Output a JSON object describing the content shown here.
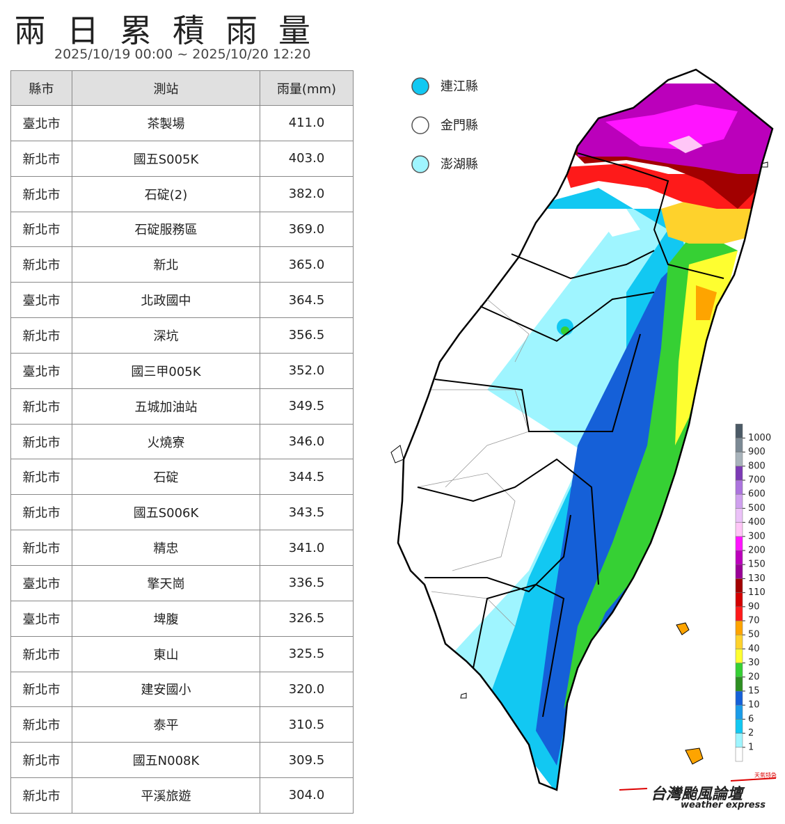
{
  "header": {
    "title": "兩日累積雨量",
    "subtitle": "2025/10/19 00:00 ~ 2025/10/20 12:20"
  },
  "table": {
    "columns": [
      "縣市",
      "測站",
      "雨量(mm)"
    ],
    "rows": [
      [
        "臺北市",
        "茶製場",
        "411.0"
      ],
      [
        "新北市",
        "國五S005K",
        "403.0"
      ],
      [
        "新北市",
        "石碇(2)",
        "382.0"
      ],
      [
        "新北市",
        "石碇服務區",
        "369.0"
      ],
      [
        "新北市",
        "新北",
        "365.0"
      ],
      [
        "臺北市",
        "北政國中",
        "364.5"
      ],
      [
        "新北市",
        "深坑",
        "356.5"
      ],
      [
        "臺北市",
        "國三甲005K",
        "352.0"
      ],
      [
        "新北市",
        "五城加油站",
        "349.5"
      ],
      [
        "新北市",
        "火燒寮",
        "346.0"
      ],
      [
        "新北市",
        "石碇",
        "344.5"
      ],
      [
        "新北市",
        "國五S006K",
        "343.5"
      ],
      [
        "新北市",
        "精忠",
        "341.0"
      ],
      [
        "臺北市",
        "擎天崗",
        "336.5"
      ],
      [
        "臺北市",
        "埤腹",
        "326.5"
      ],
      [
        "新北市",
        "東山",
        "325.5"
      ],
      [
        "新北市",
        "建安國小",
        "320.0"
      ],
      [
        "新北市",
        "泰平",
        "310.5"
      ],
      [
        "新北市",
        "國五N008K",
        "309.5"
      ],
      [
        "新北市",
        "平溪旅遊",
        "304.0"
      ]
    ]
  },
  "islands": [
    {
      "label": "連江縣",
      "color": "#12c8f2"
    },
    {
      "label": "金門縣",
      "color": "#ffffff"
    },
    {
      "label": "澎湖縣",
      "color": "#9ff5ff"
    }
  ],
  "colorbar": {
    "ticks": [
      1,
      2,
      6,
      10,
      15,
      20,
      30,
      40,
      50,
      70,
      90,
      110,
      130,
      150,
      200,
      300,
      400,
      500,
      600,
      700,
      800,
      900,
      1000
    ],
    "colors": [
      "#ffffff",
      "#9ff5ff",
      "#12c8f2",
      "#1a9ce8",
      "#1560d8",
      "#2d8f22",
      "#36d034",
      "#fefe30",
      "#fed22c",
      "#fea400",
      "#fe1a1a",
      "#d40000",
      "#a20000",
      "#9a0096",
      "#bb00bb",
      "#ff14ff",
      "#ffc6f7",
      "#ebc2f8",
      "#cfa0ee",
      "#ac74de",
      "#7c3ab5",
      "#a8b3bb",
      "#7b8994",
      "#4b5a66"
    ]
  },
  "logo": {
    "name": "台灣颱風論壇",
    "english": "weather express",
    "badge": "天氣特急"
  }
}
